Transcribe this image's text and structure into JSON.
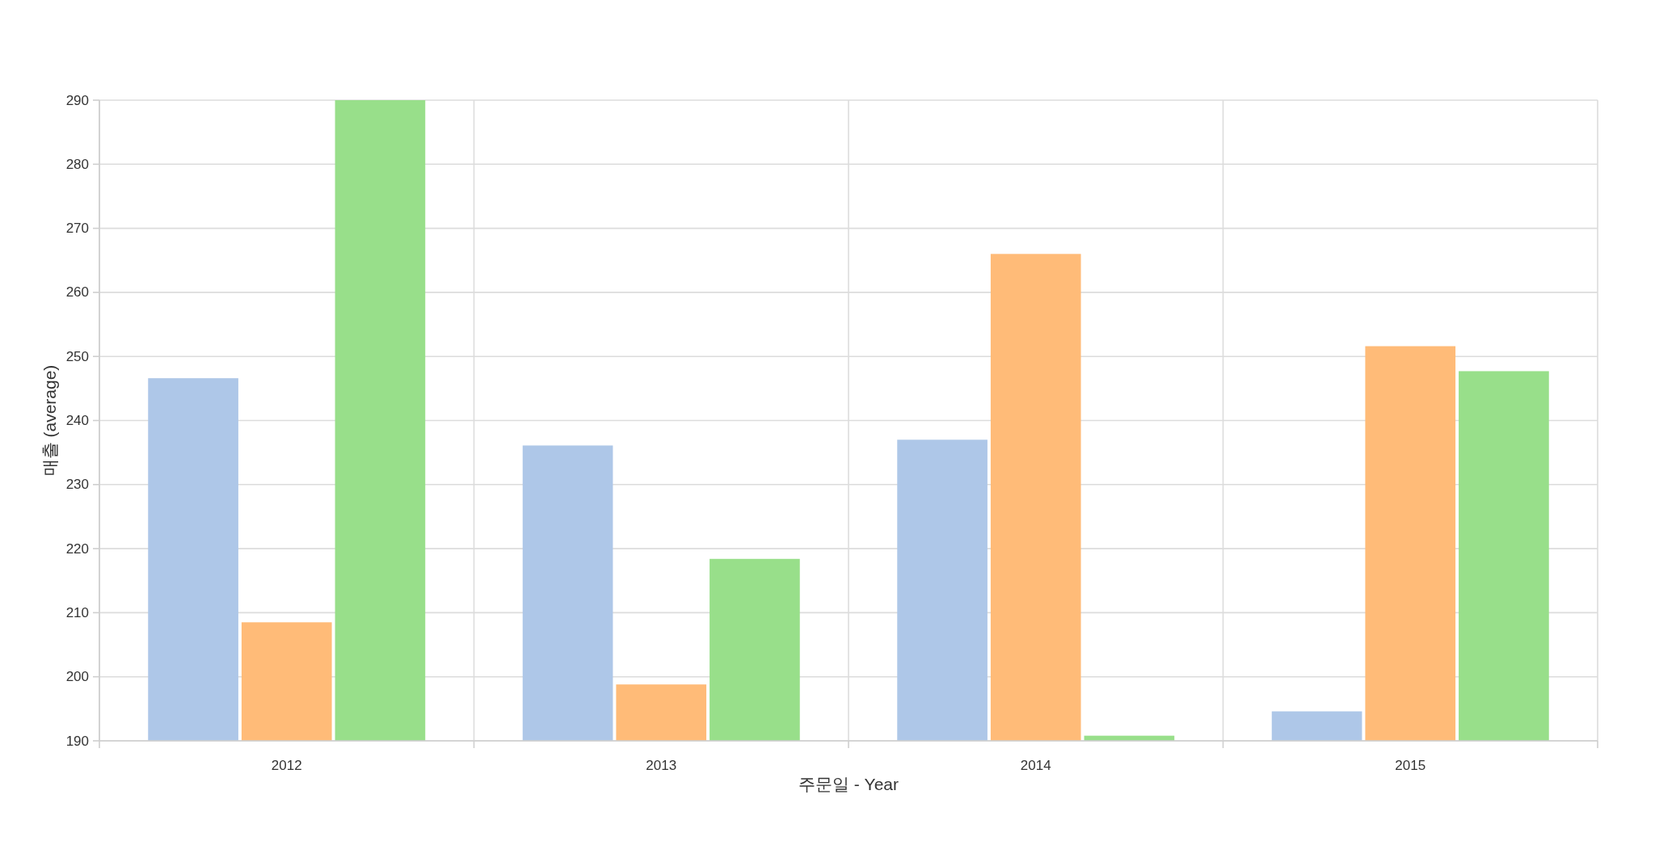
{
  "chart_data": {
    "type": "bar",
    "xlabel": "주문일 - Year",
    "ylabel": "매출 (average)",
    "categories": [
      "2012",
      "2013",
      "2014",
      "2015"
    ],
    "series": [
      {
        "color": "#aec7e8",
        "values": [
          246.6,
          236.1,
          237.0,
          194.6
        ]
      },
      {
        "color": "#ffbb78",
        "values": [
          208.5,
          198.8,
          266.0,
          251.6
        ]
      },
      {
        "color": "#98df8a",
        "values": [
          290,
          218.4,
          190.8,
          247.7
        ]
      }
    ],
    "ylim": [
      190,
      290
    ],
    "yticks": [
      190,
      200,
      210,
      220,
      230,
      240,
      250,
      260,
      270,
      280,
      290
    ],
    "grid": true
  }
}
